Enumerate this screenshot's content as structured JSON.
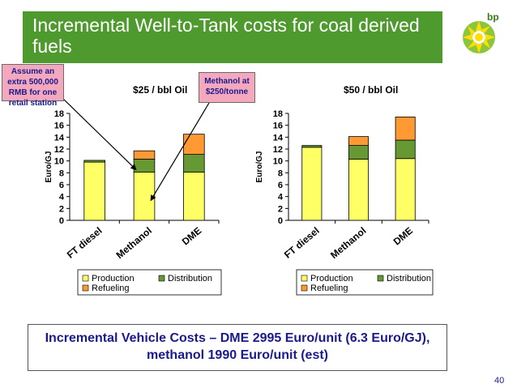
{
  "header": {
    "title": "Incremental Well-to-Tank costs for coal derived fuels"
  },
  "callouts": {
    "retail": "Assume an extra 500,000 RMB for one retail station",
    "methanol": "Methanol at $250/tonne"
  },
  "footer": {
    "text": "Incremental Vehicle  Costs – DME 2995 Euro/unit (6.3 Euro/GJ), methanol 1990 Euro/unit (est)"
  },
  "page_number": "40",
  "colors": {
    "title_band": "#4f9a2e",
    "production": "#ffff66",
    "distribution": "#669933",
    "refueling": "#ff9933",
    "callout_bg": "#f4a8bd"
  },
  "chart_data": [
    {
      "type": "bar",
      "stacked": true,
      "title": "$25 / bbl Oil",
      "ylabel": "Euro/GJ",
      "ylim": [
        0,
        18
      ],
      "yticks": [
        0,
        2,
        4,
        6,
        8,
        10,
        12,
        14,
        16,
        18
      ],
      "categories": [
        "FT diesel",
        "Methanol",
        "DME"
      ],
      "series": [
        {
          "name": "Production",
          "values": [
            9.8,
            8.1,
            8.1
          ]
        },
        {
          "name": "Distribution",
          "values": [
            0.3,
            2.2,
            3.0
          ]
        },
        {
          "name": "Refueling",
          "values": [
            0.0,
            1.4,
            3.4
          ]
        }
      ],
      "legend": "bottom"
    },
    {
      "type": "bar",
      "stacked": true,
      "title": "$50 / bbl Oil",
      "ylabel": "Euro/GJ",
      "ylim": [
        0,
        18
      ],
      "yticks": [
        0,
        2,
        4,
        6,
        8,
        10,
        12,
        14,
        16,
        18
      ],
      "categories": [
        "FT diesel",
        "Methanol",
        "DME"
      ],
      "series": [
        {
          "name": "Production",
          "values": [
            12.3,
            10.3,
            10.4
          ]
        },
        {
          "name": "Distribution",
          "values": [
            0.3,
            2.3,
            3.1
          ]
        },
        {
          "name": "Refueling",
          "values": [
            0.0,
            1.5,
            3.9
          ]
        }
      ],
      "legend": "bottom"
    }
  ]
}
